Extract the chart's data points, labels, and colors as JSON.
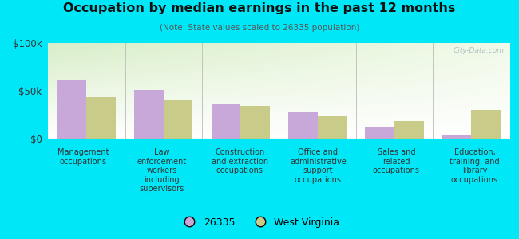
{
  "title": "Occupation by median earnings in the past 12 months",
  "subtitle": "(Note: State values scaled to 26335 population)",
  "categories": [
    "Management\noccupations",
    "Law\nenforcement\nworkers\nincluding\nsupervisors",
    "Construction\nand extraction\noccupations",
    "Office and\nadministrative\nsupport\noccupations",
    "Sales and\nrelated\noccupations",
    "Education,\ntraining, and\nlibrary\noccupations"
  ],
  "values_26335": [
    62000,
    51000,
    36000,
    28000,
    12000,
    3000
  ],
  "values_wv": [
    43000,
    40000,
    34000,
    24000,
    18000,
    30000
  ],
  "color_26335": "#c8a8d8",
  "color_wv": "#c8cc88",
  "ylim": [
    0,
    100000
  ],
  "ytick_labels": [
    "$0",
    "$50k",
    "$100k"
  ],
  "legend_labels": [
    "26335",
    "West Virginia"
  ],
  "bg_top_left": "#d8eec8",
  "bg_top_right": "#f0f8e8",
  "bg_bottom": "#ffffff",
  "outer_bg": "#00e8f8",
  "watermark": "City-Data.com",
  "separator_color": "#bbbbbb",
  "axis_line_color": "#999999"
}
